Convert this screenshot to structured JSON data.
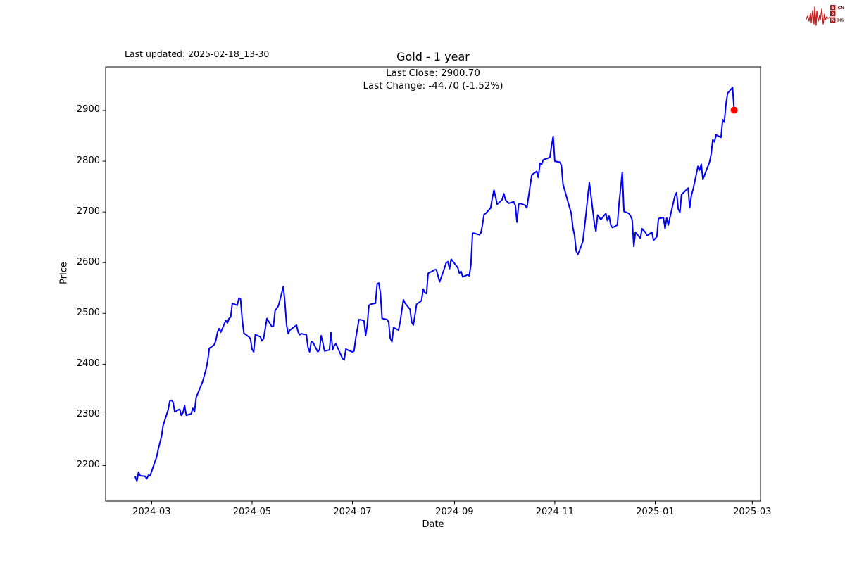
{
  "header": {
    "last_updated": "Last updated: 2025-02-18_13-30"
  },
  "logo": {
    "name": "signal-2-noise",
    "line1_initial": "S",
    "line1_rest": "IGNAL",
    "line2_initial": "2",
    "line2_rest": "",
    "line3_initial": "N",
    "line3_rest": "OISE",
    "waveform_color": "#cc2020",
    "box_color": "#b01818",
    "text_color": "#5c1616"
  },
  "chart_data": {
    "type": "line",
    "title": "Gold - 1 year",
    "subtitle_line1": "Last Close: 2900.70",
    "subtitle_line2": "Last Change: -44.70 (-1.52%)",
    "xlabel": "Date",
    "ylabel": "Price",
    "line_color": "#0000ff",
    "marker_color": "#ff0000",
    "grid": false,
    "legend": "none",
    "last_close": 2900.7,
    "last_change": -44.7,
    "last_change_pct": -1.52,
    "xlim": [
      "2024-02-02",
      "2025-03-06"
    ],
    "ylim": [
      2130,
      2986
    ],
    "x_ticks": [
      {
        "label": "2024-03",
        "date": "2024-03-01"
      },
      {
        "label": "2024-05",
        "date": "2024-05-01"
      },
      {
        "label": "2024-07",
        "date": "2024-07-01"
      },
      {
        "label": "2024-09",
        "date": "2024-09-01"
      },
      {
        "label": "2024-11",
        "date": "2024-11-01"
      },
      {
        "label": "2025-01",
        "date": "2025-01-01"
      },
      {
        "label": "2025-03",
        "date": "2025-03-01"
      }
    ],
    "y_ticks": [
      2200,
      2300,
      2400,
      2500,
      2600,
      2700,
      2800,
      2900
    ],
    "series": [
      {
        "name": "Gold",
        "points": [
          [
            "2024-02-20",
            2178
          ],
          [
            "2024-02-21",
            2169
          ],
          [
            "2024-02-22",
            2187
          ],
          [
            "2024-02-23",
            2180
          ],
          [
            "2024-02-26",
            2179
          ],
          [
            "2024-02-27",
            2174
          ],
          [
            "2024-02-28",
            2181
          ],
          [
            "2024-02-29",
            2180
          ],
          [
            "2024-03-01",
            2189
          ],
          [
            "2024-03-04",
            2217
          ],
          [
            "2024-03-05",
            2233
          ],
          [
            "2024-03-06",
            2245
          ],
          [
            "2024-03-07",
            2258
          ],
          [
            "2024-03-08",
            2280
          ],
          [
            "2024-03-11",
            2310
          ],
          [
            "2024-03-12",
            2327
          ],
          [
            "2024-03-13",
            2329
          ],
          [
            "2024-03-14",
            2325
          ],
          [
            "2024-03-15",
            2306
          ],
          [
            "2024-03-18",
            2311
          ],
          [
            "2024-03-19",
            2299
          ],
          [
            "2024-03-20",
            2304
          ],
          [
            "2024-03-21",
            2318
          ],
          [
            "2024-03-22",
            2299
          ],
          [
            "2024-03-25",
            2302
          ],
          [
            "2024-03-26",
            2313
          ],
          [
            "2024-03-27",
            2306
          ],
          [
            "2024-03-28",
            2334
          ],
          [
            "2024-04-01",
            2366
          ],
          [
            "2024-04-02",
            2378
          ],
          [
            "2024-04-03",
            2389
          ],
          [
            "2024-04-04",
            2406
          ],
          [
            "2024-04-05",
            2431
          ],
          [
            "2024-04-08",
            2438
          ],
          [
            "2024-04-09",
            2447
          ],
          [
            "2024-04-10",
            2463
          ],
          [
            "2024-04-11",
            2470
          ],
          [
            "2024-04-12",
            2463
          ],
          [
            "2024-04-15",
            2486
          ],
          [
            "2024-04-16",
            2481
          ],
          [
            "2024-04-17",
            2490
          ],
          [
            "2024-04-18",
            2493
          ],
          [
            "2024-04-19",
            2520
          ],
          [
            "2024-04-22",
            2516
          ],
          [
            "2024-04-23",
            2530
          ],
          [
            "2024-04-24",
            2528
          ],
          [
            "2024-04-25",
            2489
          ],
          [
            "2024-04-26",
            2461
          ],
          [
            "2024-04-29",
            2454
          ],
          [
            "2024-04-30",
            2450
          ],
          [
            "2024-05-01",
            2429
          ],
          [
            "2024-05-02",
            2424
          ],
          [
            "2024-05-03",
            2458
          ],
          [
            "2024-05-06",
            2454
          ],
          [
            "2024-05-07",
            2446
          ],
          [
            "2024-05-08",
            2450
          ],
          [
            "2024-05-09",
            2470
          ],
          [
            "2024-05-10",
            2490
          ],
          [
            "2024-05-13",
            2474
          ],
          [
            "2024-05-14",
            2475
          ],
          [
            "2024-05-15",
            2506
          ],
          [
            "2024-05-16",
            2510
          ],
          [
            "2024-05-17",
            2515
          ],
          [
            "2024-05-20",
            2553
          ],
          [
            "2024-05-21",
            2520
          ],
          [
            "2024-05-22",
            2477
          ],
          [
            "2024-05-23",
            2460
          ],
          [
            "2024-05-24",
            2467
          ],
          [
            "2024-05-28",
            2477
          ],
          [
            "2024-05-29",
            2463
          ],
          [
            "2024-05-30",
            2458
          ],
          [
            "2024-05-31",
            2460
          ],
          [
            "2024-06-03",
            2458
          ],
          [
            "2024-06-04",
            2433
          ],
          [
            "2024-06-05",
            2424
          ],
          [
            "2024-06-06",
            2445
          ],
          [
            "2024-06-07",
            2443
          ],
          [
            "2024-06-10",
            2424
          ],
          [
            "2024-06-11",
            2429
          ],
          [
            "2024-06-12",
            2456
          ],
          [
            "2024-06-13",
            2443
          ],
          [
            "2024-06-14",
            2426
          ],
          [
            "2024-06-17",
            2428
          ],
          [
            "2024-06-18",
            2462
          ],
          [
            "2024-06-19",
            2428
          ],
          [
            "2024-06-20",
            2437
          ],
          [
            "2024-06-21",
            2440
          ],
          [
            "2024-06-24",
            2418
          ],
          [
            "2024-06-25",
            2411
          ],
          [
            "2024-06-26",
            2408
          ],
          [
            "2024-06-27",
            2430
          ],
          [
            "2024-06-28",
            2428
          ],
          [
            "2024-07-01",
            2424
          ],
          [
            "2024-07-02",
            2426
          ],
          [
            "2024-07-03",
            2451
          ],
          [
            "2024-07-05",
            2488
          ],
          [
            "2024-07-08",
            2486
          ],
          [
            "2024-07-09",
            2456
          ],
          [
            "2024-07-10",
            2477
          ],
          [
            "2024-07-11",
            2516
          ],
          [
            "2024-07-12",
            2518
          ],
          [
            "2024-07-15",
            2520
          ],
          [
            "2024-07-16",
            2558
          ],
          [
            "2024-07-17",
            2560
          ],
          [
            "2024-07-18",
            2541
          ],
          [
            "2024-07-19",
            2490
          ],
          [
            "2024-07-22",
            2488
          ],
          [
            "2024-07-23",
            2483
          ],
          [
            "2024-07-24",
            2451
          ],
          [
            "2024-07-25",
            2444
          ],
          [
            "2024-07-26",
            2472
          ],
          [
            "2024-07-29",
            2467
          ],
          [
            "2024-07-30",
            2483
          ],
          [
            "2024-07-31",
            2506
          ],
          [
            "2024-08-01",
            2527
          ],
          [
            "2024-08-02",
            2520
          ],
          [
            "2024-08-05",
            2508
          ],
          [
            "2024-08-06",
            2483
          ],
          [
            "2024-08-07",
            2477
          ],
          [
            "2024-08-08",
            2497
          ],
          [
            "2024-08-09",
            2518
          ],
          [
            "2024-08-12",
            2525
          ],
          [
            "2024-08-13",
            2548
          ],
          [
            "2024-08-14",
            2541
          ],
          [
            "2024-08-15",
            2539
          ],
          [
            "2024-08-16",
            2579
          ],
          [
            "2024-08-19",
            2584
          ],
          [
            "2024-08-20",
            2586
          ],
          [
            "2024-08-21",
            2586
          ],
          [
            "2024-08-22",
            2574
          ],
          [
            "2024-08-23",
            2562
          ],
          [
            "2024-08-26",
            2590
          ],
          [
            "2024-08-27",
            2600
          ],
          [
            "2024-08-28",
            2602
          ],
          [
            "2024-08-29",
            2588
          ],
          [
            "2024-08-30",
            2607
          ],
          [
            "2024-09-03",
            2590
          ],
          [
            "2024-09-04",
            2579
          ],
          [
            "2024-09-05",
            2583
          ],
          [
            "2024-09-06",
            2572
          ],
          [
            "2024-09-09",
            2576
          ],
          [
            "2024-09-10",
            2574
          ],
          [
            "2024-09-11",
            2595
          ],
          [
            "2024-09-12",
            2658
          ],
          [
            "2024-09-13",
            2658
          ],
          [
            "2024-09-16",
            2655
          ],
          [
            "2024-09-17",
            2658
          ],
          [
            "2024-09-18",
            2674
          ],
          [
            "2024-09-19",
            2695
          ],
          [
            "2024-09-20",
            2697
          ],
          [
            "2024-09-23",
            2708
          ],
          [
            "2024-09-24",
            2727
          ],
          [
            "2024-09-25",
            2743
          ],
          [
            "2024-09-26",
            2729
          ],
          [
            "2024-09-27",
            2715
          ],
          [
            "2024-09-30",
            2724
          ],
          [
            "2024-10-01",
            2736
          ],
          [
            "2024-10-02",
            2724
          ],
          [
            "2024-10-03",
            2720
          ],
          [
            "2024-10-04",
            2717
          ],
          [
            "2024-10-07",
            2720
          ],
          [
            "2024-10-08",
            2713
          ],
          [
            "2024-10-09",
            2680
          ],
          [
            "2024-10-10",
            2715
          ],
          [
            "2024-10-11",
            2717
          ],
          [
            "2024-10-14",
            2713
          ],
          [
            "2024-10-15",
            2708
          ],
          [
            "2024-10-16",
            2729
          ],
          [
            "2024-10-17",
            2752
          ],
          [
            "2024-10-18",
            2773
          ],
          [
            "2024-10-21",
            2780
          ],
          [
            "2024-10-22",
            2768
          ],
          [
            "2024-10-23",
            2796
          ],
          [
            "2024-10-24",
            2794
          ],
          [
            "2024-10-25",
            2803
          ],
          [
            "2024-10-28",
            2806
          ],
          [
            "2024-10-29",
            2808
          ],
          [
            "2024-10-30",
            2829
          ],
          [
            "2024-10-31",
            2849
          ],
          [
            "2024-11-01",
            2800
          ],
          [
            "2024-11-04",
            2798
          ],
          [
            "2024-11-05",
            2792
          ],
          [
            "2024-11-06",
            2754
          ],
          [
            "2024-11-07",
            2743
          ],
          [
            "2024-11-08",
            2731
          ],
          [
            "2024-11-11",
            2697
          ],
          [
            "2024-11-12",
            2669
          ],
          [
            "2024-11-13",
            2653
          ],
          [
            "2024-11-14",
            2623
          ],
          [
            "2024-11-15",
            2616
          ],
          [
            "2024-11-18",
            2641
          ],
          [
            "2024-11-19",
            2669
          ],
          [
            "2024-11-20",
            2697
          ],
          [
            "2024-11-21",
            2729
          ],
          [
            "2024-11-22",
            2758
          ],
          [
            "2024-11-25",
            2678
          ],
          [
            "2024-11-26",
            2662
          ],
          [
            "2024-11-27",
            2694
          ],
          [
            "2024-11-29",
            2685
          ],
          [
            "2024-12-02",
            2697
          ],
          [
            "2024-12-03",
            2683
          ],
          [
            "2024-12-04",
            2692
          ],
          [
            "2024-12-05",
            2674
          ],
          [
            "2024-12-06",
            2669
          ],
          [
            "2024-12-09",
            2674
          ],
          [
            "2024-12-10",
            2715
          ],
          [
            "2024-12-11",
            2747
          ],
          [
            "2024-12-12",
            2778
          ],
          [
            "2024-12-13",
            2701
          ],
          [
            "2024-12-16",
            2697
          ],
          [
            "2024-12-17",
            2692
          ],
          [
            "2024-12-18",
            2685
          ],
          [
            "2024-12-19",
            2632
          ],
          [
            "2024-12-20",
            2660
          ],
          [
            "2024-12-23",
            2648
          ],
          [
            "2024-12-24",
            2667
          ],
          [
            "2024-12-26",
            2660
          ],
          [
            "2024-12-27",
            2653
          ],
          [
            "2024-12-30",
            2660
          ],
          [
            "2024-12-31",
            2644
          ],
          [
            "2025-01-02",
            2651
          ],
          [
            "2025-01-03",
            2687
          ],
          [
            "2025-01-06",
            2689
          ],
          [
            "2025-01-07",
            2667
          ],
          [
            "2025-01-08",
            2688
          ],
          [
            "2025-01-09",
            2674
          ],
          [
            "2025-01-10",
            2690
          ],
          [
            "2025-01-13",
            2732
          ],
          [
            "2025-01-14",
            2738
          ],
          [
            "2025-01-15",
            2706
          ],
          [
            "2025-01-16",
            2699
          ],
          [
            "2025-01-17",
            2734
          ],
          [
            "2025-01-21",
            2747
          ],
          [
            "2025-01-22",
            2708
          ],
          [
            "2025-01-23",
            2733
          ],
          [
            "2025-01-24",
            2744
          ],
          [
            "2025-01-27",
            2790
          ],
          [
            "2025-01-28",
            2782
          ],
          [
            "2025-01-29",
            2794
          ],
          [
            "2025-01-30",
            2764
          ],
          [
            "2025-01-31",
            2773
          ],
          [
            "2025-02-03",
            2798
          ],
          [
            "2025-02-04",
            2814
          ],
          [
            "2025-02-05",
            2842
          ],
          [
            "2025-02-06",
            2838
          ],
          [
            "2025-02-07",
            2852
          ],
          [
            "2025-02-10",
            2847
          ],
          [
            "2025-02-11",
            2882
          ],
          [
            "2025-02-12",
            2877
          ],
          [
            "2025-02-13",
            2912
          ],
          [
            "2025-02-14",
            2934
          ],
          [
            "2025-02-17",
            2945.4
          ],
          [
            "2025-02-18",
            2900.7
          ]
        ]
      }
    ]
  }
}
